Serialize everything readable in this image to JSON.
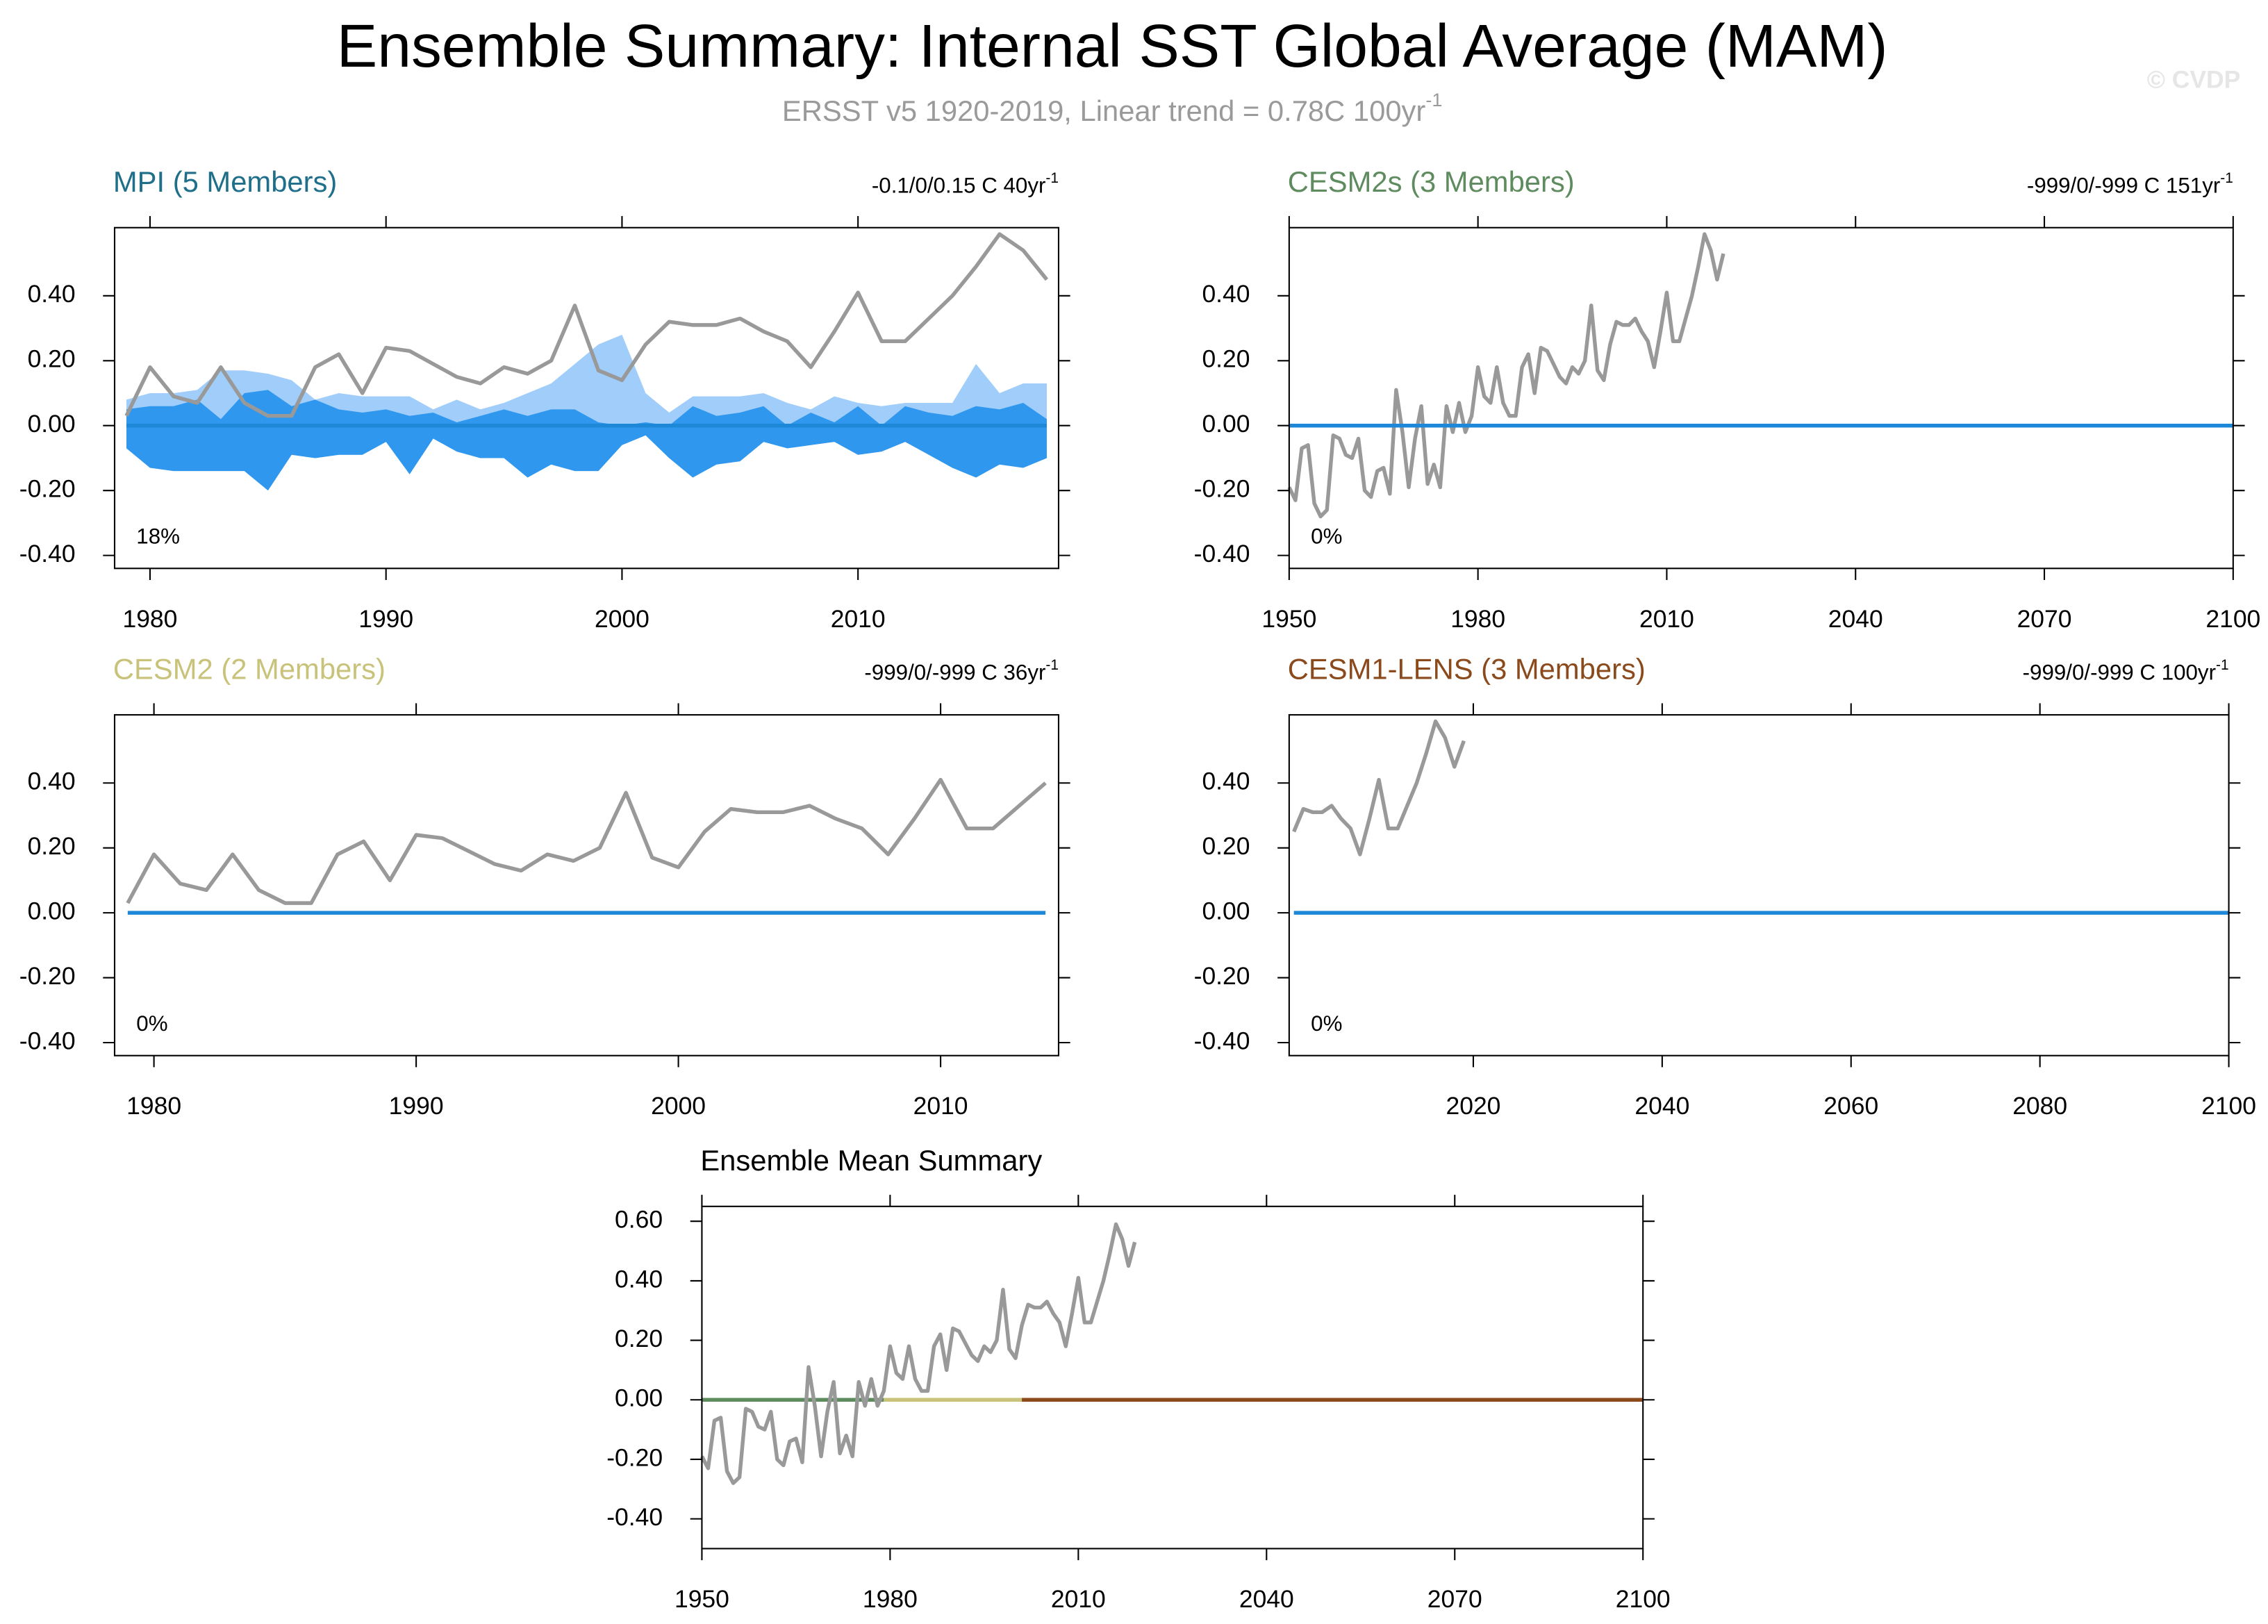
{
  "title": "Ensemble Summary: Internal SST Global Average (MAM)",
  "subtitle": "ERSST v5 1920-2019, Linear trend = 0.78C 100yr",
  "subtitle_exponent": "-1",
  "watermark": "© CVDP",
  "chart_data": [
    {
      "type": "line",
      "title": "MPI (5 Members)",
      "title_color": "#1f6f8b",
      "trend_label": "-0.1/0/0.15 C 40yr",
      "trend_exponent": "-1",
      "percent_label": "18%",
      "xlim": [
        1978.5,
        2018.5
      ],
      "xticks": [
        1980,
        1990,
        2000,
        2010
      ],
      "ylim": [
        -0.44,
        0.61
      ],
      "yticks": [
        {
          "value": -0.4,
          "label": "-0.40"
        },
        {
          "value": -0.2,
          "label": "-0.20"
        },
        {
          "value": 0,
          "label": "0.00"
        },
        {
          "value": 0.2,
          "label": "0.20"
        },
        {
          "value": 0.4,
          "label": "0.40"
        }
      ],
      "bands": {
        "x": [
          1979,
          1980,
          1981,
          1982,
          1983,
          1984,
          1985,
          1986,
          1987,
          1988,
          1989,
          1990,
          1991,
          1992,
          1993,
          1994,
          1995,
          1996,
          1997,
          1998,
          1999,
          2000,
          2001,
          2002,
          2003,
          2004,
          2005,
          2006,
          2007,
          2008,
          2009,
          2010,
          2011,
          2012,
          2013,
          2014,
          2015,
          2016,
          2017,
          2018
        ],
        "light_color": "#a0cdfa",
        "dark_color": "#2f97ee",
        "upper_light": [
          0.08,
          0.1,
          0.1,
          0.11,
          0.17,
          0.17,
          0.16,
          0.14,
          0.08,
          0.1,
          0.09,
          0.09,
          0.09,
          0.05,
          0.08,
          0.05,
          0.07,
          0.1,
          0.13,
          0.19,
          0.25,
          0.28,
          0.1,
          0.04,
          0.09,
          0.09,
          0.09,
          0.1,
          0.07,
          0.05,
          0.09,
          0.07,
          0.06,
          0.07,
          0.07,
          0.07,
          0.19,
          0.1,
          0.13,
          0.13
        ],
        "upper_dark": [
          0.05,
          0.06,
          0.06,
          0.08,
          0.02,
          0.1,
          0.11,
          0.06,
          0.08,
          0.05,
          0.04,
          0.05,
          0.03,
          0.04,
          0.01,
          0.03,
          0.05,
          0.03,
          0.05,
          0.05,
          0.01,
          0.0,
          0.01,
          0.0,
          0.06,
          0.03,
          0.04,
          0.06,
          0.0,
          0.04,
          0.01,
          0.06,
          0.0,
          0.06,
          0.04,
          0.03,
          0.06,
          0.05,
          0.07,
          0.02
        ],
        "lower": [
          -0.07,
          -0.13,
          -0.14,
          -0.14,
          -0.14,
          -0.14,
          -0.2,
          -0.09,
          -0.1,
          -0.09,
          -0.09,
          -0.05,
          -0.15,
          -0.04,
          -0.08,
          -0.1,
          -0.1,
          -0.16,
          -0.12,
          -0.14,
          -0.14,
          -0.06,
          -0.03,
          -0.1,
          -0.16,
          -0.12,
          -0.11,
          -0.05,
          -0.07,
          -0.06,
          -0.05,
          -0.09,
          -0.08,
          -0.05,
          -0.09,
          -0.13,
          -0.16,
          -0.12,
          -0.13,
          -0.1
        ]
      },
      "series": [
        {
          "color": "#999999",
          "x": [
            1979,
            1980,
            1981,
            1982,
            1983,
            1984,
            1985,
            1986,
            1987,
            1988,
            1989,
            1990,
            1991,
            1992,
            1993,
            1994,
            1995,
            1996,
            1997,
            1998,
            1999,
            2000,
            2001,
            2002,
            2003,
            2004,
            2005,
            2006,
            2007,
            2008,
            2009,
            2010,
            2011,
            2012,
            2013,
            2014,
            2015,
            2016,
            2017,
            2018
          ],
          "values": [
            0.03,
            0.18,
            0.09,
            0.07,
            0.18,
            0.07,
            0.03,
            0.03,
            0.18,
            0.22,
            0.1,
            0.24,
            0.23,
            0.19,
            0.15,
            0.13,
            0.18,
            0.16,
            0.2,
            0.37,
            0.17,
            0.14,
            0.25,
            0.32,
            0.31,
            0.31,
            0.33,
            0.29,
            0.26,
            0.18,
            0.29,
            0.41,
            0.26,
            0.26,
            0.33,
            0.4,
            0.49,
            0.59,
            0.54,
            0.45
          ]
        },
        {
          "color": "#1e88d8",
          "x": [
            1979,
            2018
          ],
          "values": [
            0,
            0
          ]
        }
      ]
    },
    {
      "type": "line",
      "title": "CESM2s (3 Members)",
      "title_color": "#5f8c5f",
      "trend_label": "-999/0/-999 C 151yr",
      "trend_exponent": "-1",
      "percent_label": "0%",
      "xlim": [
        1950,
        2100
      ],
      "xticks": [
        1950,
        1980,
        2010,
        2040,
        2070,
        2100
      ],
      "ylim": [
        -0.44,
        0.61
      ],
      "yticks": [
        {
          "value": -0.4,
          "label": "-0.40"
        },
        {
          "value": -0.2,
          "label": "-0.20"
        },
        {
          "value": 0,
          "label": "0.00"
        },
        {
          "value": 0.2,
          "label": "0.20"
        },
        {
          "value": 0.4,
          "label": "0.40"
        }
      ],
      "series": [
        {
          "color": "#999999",
          "x": [
            1950,
            1951,
            1952,
            1953,
            1954,
            1955,
            1956,
            1957,
            1958,
            1959,
            1960,
            1961,
            1962,
            1963,
            1964,
            1965,
            1966,
            1967,
            1968,
            1969,
            1970,
            1971,
            1972,
            1973,
            1974,
            1975,
            1976,
            1977,
            1978,
            1979,
            1980,
            1981,
            1982,
            1983,
            1984,
            1985,
            1986,
            1987,
            1988,
            1989,
            1990,
            1991,
            1992,
            1993,
            1994,
            1995,
            1996,
            1997,
            1998,
            1999,
            2000,
            2001,
            2002,
            2003,
            2004,
            2005,
            2006,
            2007,
            2008,
            2009,
            2010,
            2011,
            2012,
            2013,
            2014,
            2015,
            2016,
            2017,
            2018,
            2019
          ],
          "values": [
            -0.19,
            -0.23,
            -0.07,
            -0.06,
            -0.24,
            -0.28,
            -0.26,
            -0.03,
            -0.04,
            -0.09,
            -0.1,
            -0.04,
            -0.2,
            -0.22,
            -0.14,
            -0.13,
            -0.21,
            0.11,
            -0.02,
            -0.19,
            -0.04,
            0.06,
            -0.18,
            -0.12,
            -0.19,
            0.06,
            -0.02,
            0.07,
            -0.02,
            0.03,
            0.18,
            0.09,
            0.07,
            0.18,
            0.07,
            0.03,
            0.03,
            0.18,
            0.22,
            0.1,
            0.24,
            0.23,
            0.19,
            0.15,
            0.13,
            0.18,
            0.16,
            0.2,
            0.37,
            0.17,
            0.14,
            0.25,
            0.32,
            0.31,
            0.31,
            0.33,
            0.29,
            0.26,
            0.18,
            0.29,
            0.41,
            0.26,
            0.26,
            0.33,
            0.4,
            0.49,
            0.59,
            0.54,
            0.45,
            0.53
          ]
        },
        {
          "color": "#1e88d8",
          "x": [
            1950,
            2100
          ],
          "values": [
            0,
            0
          ]
        }
      ]
    },
    {
      "type": "line",
      "title": "CESM2 (2 Members)",
      "title_color": "#c9c27a",
      "trend_label": "-999/0/-999 C 36yr",
      "trend_exponent": "-1",
      "percent_label": "0%",
      "xlim": [
        1978.5,
        2014.5
      ],
      "xticks": [
        1980,
        1990,
        2000,
        2010
      ],
      "ylim": [
        -0.44,
        0.61
      ],
      "yticks": [
        {
          "value": -0.4,
          "label": "-0.40"
        },
        {
          "value": -0.2,
          "label": "-0.20"
        },
        {
          "value": 0,
          "label": "0.00"
        },
        {
          "value": 0.2,
          "label": "0.20"
        },
        {
          "value": 0.4,
          "label": "0.40"
        }
      ],
      "series": [
        {
          "color": "#999999",
          "x": [
            1979,
            1980,
            1981,
            1982,
            1983,
            1984,
            1985,
            1986,
            1987,
            1988,
            1989,
            1990,
            1991,
            1992,
            1993,
            1994,
            1995,
            1996,
            1997,
            1998,
            1999,
            2000,
            2001,
            2002,
            2003,
            2004,
            2005,
            2006,
            2007,
            2008,
            2009,
            2010,
            2011,
            2012,
            2013,
            2014
          ],
          "values": [
            0.03,
            0.18,
            0.09,
            0.07,
            0.18,
            0.07,
            0.03,
            0.03,
            0.18,
            0.22,
            0.1,
            0.24,
            0.23,
            0.19,
            0.15,
            0.13,
            0.18,
            0.16,
            0.2,
            0.37,
            0.17,
            0.14,
            0.25,
            0.32,
            0.31,
            0.31,
            0.33,
            0.29,
            0.26,
            0.18,
            0.29,
            0.41,
            0.26,
            0.26,
            0.33,
            0.4
          ]
        },
        {
          "color": "#1e88d8",
          "x": [
            1979,
            2014
          ],
          "values": [
            0,
            0
          ]
        }
      ]
    },
    {
      "type": "line",
      "title": "CESM1-LENS (3 Members)",
      "title_color": "#8b4a1c",
      "trend_label": "-999/0/-999 C 100yr",
      "trend_exponent": "-1",
      "percent_label": "0%",
      "xlim": [
        2000.5,
        2100
      ],
      "xticks": [
        2020,
        2040,
        2060,
        2080,
        2100
      ],
      "ylim": [
        -0.44,
        0.61
      ],
      "yticks": [
        {
          "value": -0.4,
          "label": "-0.40"
        },
        {
          "value": -0.2,
          "label": "-0.20"
        },
        {
          "value": 0,
          "label": "0.00"
        },
        {
          "value": 0.2,
          "label": "0.20"
        },
        {
          "value": 0.4,
          "label": "0.40"
        }
      ],
      "series": [
        {
          "color": "#999999",
          "x": [
            2001,
            2002,
            2003,
            2004,
            2005,
            2006,
            2007,
            2008,
            2009,
            2010,
            2011,
            2012,
            2013,
            2014,
            2015,
            2016,
            2017,
            2018,
            2019
          ],
          "values": [
            0.25,
            0.32,
            0.31,
            0.31,
            0.33,
            0.29,
            0.26,
            0.18,
            0.29,
            0.41,
            0.26,
            0.26,
            0.33,
            0.4,
            0.49,
            0.59,
            0.54,
            0.45,
            0.53
          ]
        },
        {
          "color": "#1e88d8",
          "x": [
            2001,
            2100
          ],
          "values": [
            0,
            0
          ]
        }
      ]
    },
    {
      "type": "line",
      "title": "Ensemble Mean Summary",
      "title_color": "#000000",
      "xlim": [
        1950,
        2100
      ],
      "xticks": [
        1950,
        1980,
        2010,
        2040,
        2070,
        2100
      ],
      "ylim": [
        -0.5,
        0.65
      ],
      "yticks": [
        {
          "value": -0.4,
          "label": "-0.40"
        },
        {
          "value": -0.2,
          "label": "-0.20"
        },
        {
          "value": 0,
          "label": "0.00"
        },
        {
          "value": 0.2,
          "label": "0.20"
        },
        {
          "value": 0.4,
          "label": "0.40"
        },
        {
          "value": 0.6,
          "label": "0.60"
        }
      ],
      "series": [
        {
          "color": "#5f8c5f",
          "x": [
            1950,
            1979
          ],
          "values": [
            0,
            0
          ]
        },
        {
          "color": "#c9c27a",
          "x": [
            1979,
            2001
          ],
          "values": [
            0,
            0
          ]
        },
        {
          "color": "#8b4a1c",
          "x": [
            2001,
            2100
          ],
          "values": [
            0,
            0
          ]
        },
        {
          "color": "#999999",
          "x": [
            1950,
            1951,
            1952,
            1953,
            1954,
            1955,
            1956,
            1957,
            1958,
            1959,
            1960,
            1961,
            1962,
            1963,
            1964,
            1965,
            1966,
            1967,
            1968,
            1969,
            1970,
            1971,
            1972,
            1973,
            1974,
            1975,
            1976,
            1977,
            1978,
            1979,
            1980,
            1981,
            1982,
            1983,
            1984,
            1985,
            1986,
            1987,
            1988,
            1989,
            1990,
            1991,
            1992,
            1993,
            1994,
            1995,
            1996,
            1997,
            1998,
            1999,
            2000,
            2001,
            2002,
            2003,
            2004,
            2005,
            2006,
            2007,
            2008,
            2009,
            2010,
            2011,
            2012,
            2013,
            2014,
            2015,
            2016,
            2017,
            2018,
            2019
          ],
          "values": [
            -0.19,
            -0.23,
            -0.07,
            -0.06,
            -0.24,
            -0.28,
            -0.26,
            -0.03,
            -0.04,
            -0.09,
            -0.1,
            -0.04,
            -0.2,
            -0.22,
            -0.14,
            -0.13,
            -0.21,
            0.11,
            -0.02,
            -0.19,
            -0.04,
            0.06,
            -0.18,
            -0.12,
            -0.19,
            0.06,
            -0.02,
            0.07,
            -0.02,
            0.03,
            0.18,
            0.09,
            0.07,
            0.18,
            0.07,
            0.03,
            0.03,
            0.18,
            0.22,
            0.1,
            0.24,
            0.23,
            0.19,
            0.15,
            0.13,
            0.18,
            0.16,
            0.2,
            0.37,
            0.17,
            0.14,
            0.25,
            0.32,
            0.31,
            0.31,
            0.33,
            0.29,
            0.26,
            0.18,
            0.29,
            0.41,
            0.26,
            0.26,
            0.33,
            0.4,
            0.49,
            0.59,
            0.54,
            0.45,
            0.53
          ]
        }
      ]
    }
  ]
}
